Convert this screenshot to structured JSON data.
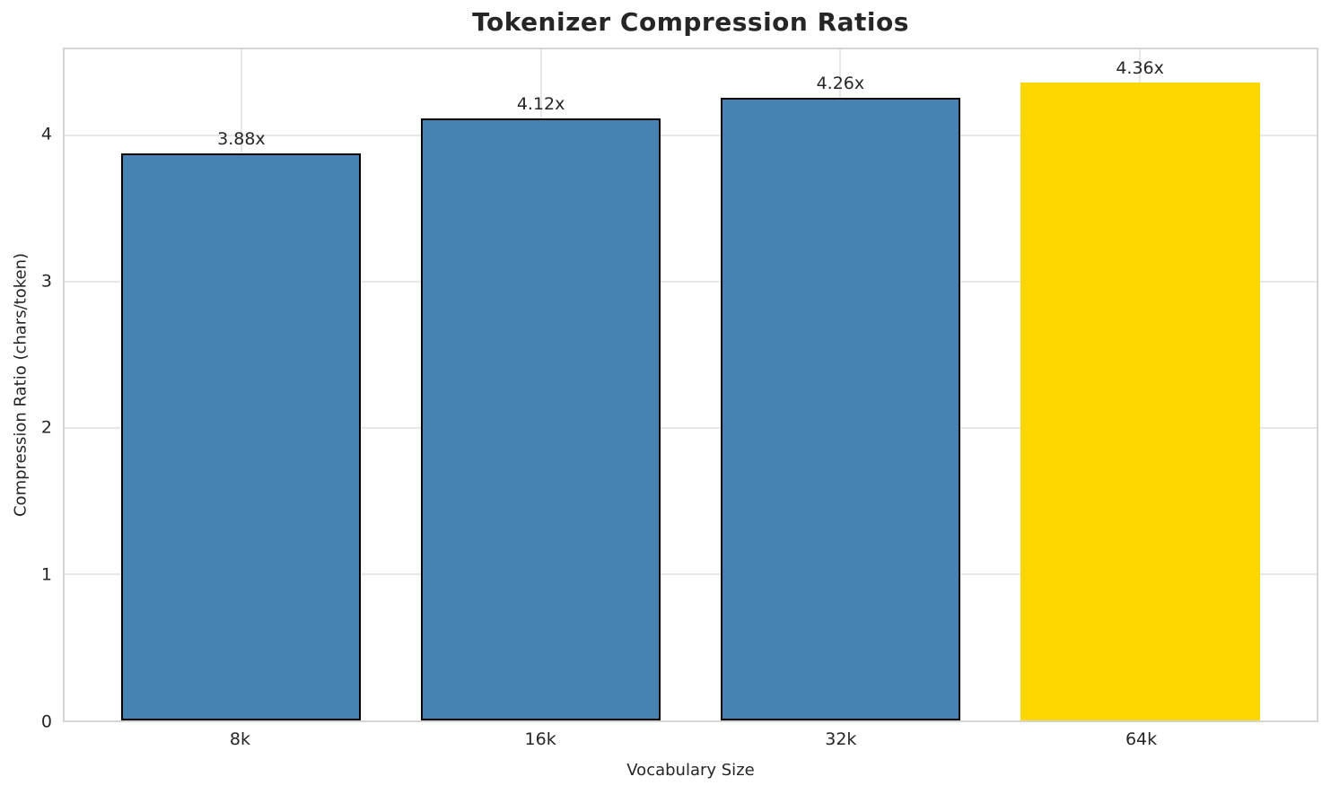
{
  "figure": {
    "background": "#ffffff"
  },
  "chart_data": {
    "type": "bar",
    "title": "Tokenizer Compression Ratios",
    "xlabel": "Vocabulary Size",
    "ylabel": "Compression Ratio (chars/token)",
    "categories": [
      "8k",
      "16k",
      "32k",
      "64k"
    ],
    "values": [
      3.88,
      4.12,
      4.26,
      4.36
    ],
    "bar_labels": [
      "3.88x",
      "4.12x",
      "4.26x",
      "4.36x"
    ],
    "yticks": [
      0,
      1,
      2,
      3,
      4
    ],
    "ylim": [
      0,
      4.59
    ],
    "grid": true,
    "legend_position": "none",
    "bar_colors": [
      "#4682b4",
      "#4682b4",
      "#4682b4",
      "#ffd700"
    ],
    "bar_edge_colors": [
      "#000000",
      "#000000",
      "#000000",
      "none"
    ],
    "colors": {
      "default_bar": "#4682b4",
      "highlight_bar": "#ffd700",
      "text": "#262626",
      "grid": "#e8e8e8",
      "spine": "#d5d5d5"
    }
  }
}
